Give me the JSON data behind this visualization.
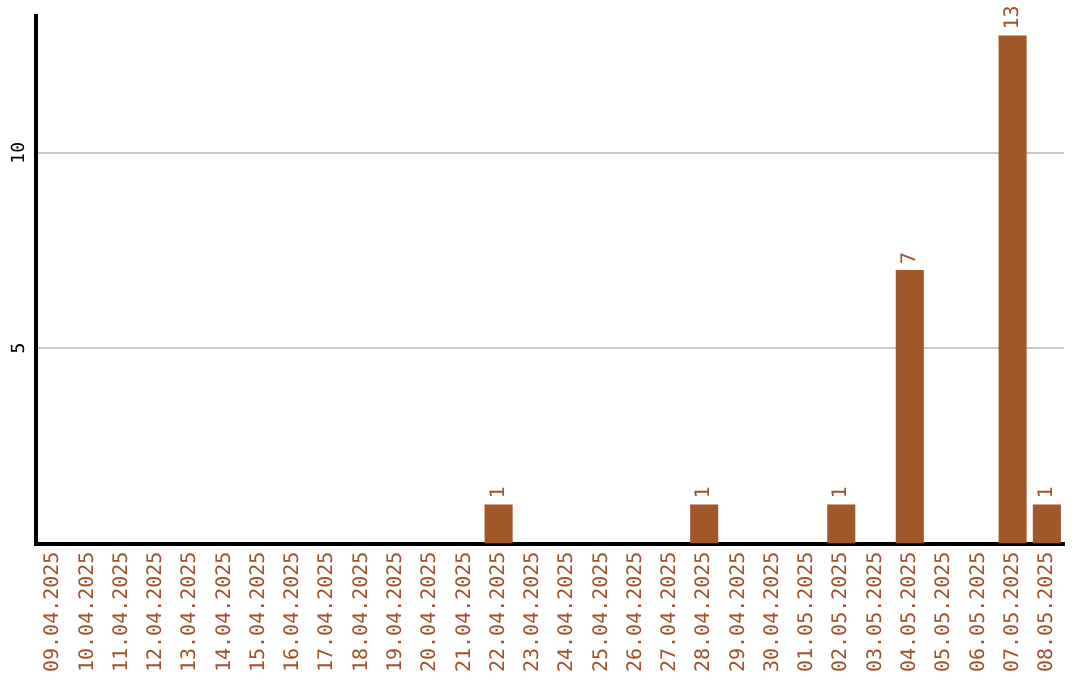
{
  "chart_data": {
    "type": "bar",
    "categories": [
      "09.04.2025",
      "10.04.2025",
      "11.04.2025",
      "12.04.2025",
      "13.04.2025",
      "14.04.2025",
      "15.04.2025",
      "16.04.2025",
      "17.04.2025",
      "18.04.2025",
      "19.04.2025",
      "20.04.2025",
      "21.04.2025",
      "22.04.2025",
      "23.04.2025",
      "24.04.2025",
      "25.04.2025",
      "26.04.2025",
      "27.04.2025",
      "28.04.2025",
      "29.04.2025",
      "30.04.2025",
      "01.05.2025",
      "02.05.2025",
      "03.05.2025",
      "04.05.2025",
      "05.05.2025",
      "06.05.2025",
      "07.05.2025",
      "08.05.2025"
    ],
    "values": [
      0,
      0,
      0,
      0,
      0,
      0,
      0,
      0,
      0,
      0,
      0,
      0,
      0,
      1,
      0,
      0,
      0,
      0,
      0,
      1,
      0,
      0,
      0,
      1,
      0,
      7,
      0,
      0,
      13,
      1
    ],
    "value_labels": [
      null,
      null,
      null,
      null,
      null,
      null,
      null,
      null,
      null,
      null,
      null,
      null,
      null,
      "1",
      null,
      null,
      null,
      null,
      null,
      "1",
      null,
      null,
      null,
      "1",
      null,
      "7",
      null,
      null,
      "13",
      "1"
    ],
    "color": "#a0582a",
    "ylim": [
      0,
      13.5
    ],
    "yticks": [
      5,
      10
    ],
    "grid": "y",
    "legend": false
  }
}
